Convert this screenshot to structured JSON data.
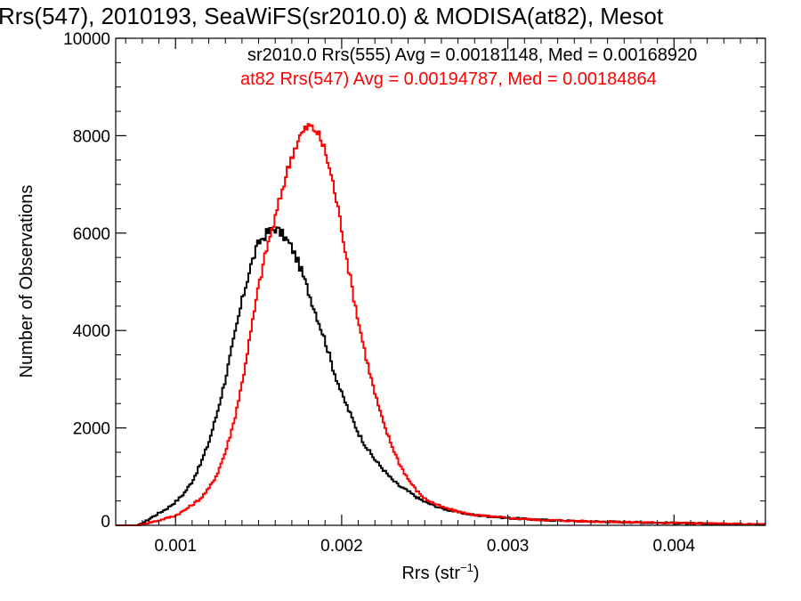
{
  "chart_data": {
    "type": "line",
    "step": true,
    "title": "Rrs(547), 2010193, SeaWiFS(sr2010.0) & MODISA(at82), Mesot",
    "xlabel_main": "Rrs (str",
    "xlabel_sup": "−1",
    "xlabel_end": ")",
    "ylabel": "Number of Observations",
    "xlim": [
      0.00064,
      0.00455
    ],
    "ylim": [
      0,
      10000
    ],
    "xticks": [
      0.001,
      0.002,
      0.003,
      0.004
    ],
    "xtick_labels": [
      "0.001",
      "0.002",
      "0.003",
      "0.004"
    ],
    "yticks": [
      0,
      2000,
      4000,
      6000,
      8000,
      10000
    ],
    "ytick_labels": [
      "0",
      "2000",
      "4000",
      "6000",
      "8000",
      "10000"
    ],
    "grid": false,
    "series": [
      {
        "name": "sr2010.0 Rrs(555) Avg = 0.00181148, Med = 0.00168920",
        "color": "#000000",
        "points": [
          [
            0.00064,
            0
          ],
          [
            0.00078,
            0
          ],
          [
            0.00082,
            80
          ],
          [
            0.00085,
            150
          ],
          [
            0.0009,
            250
          ],
          [
            0.00095,
            350
          ],
          [
            0.001,
            480
          ],
          [
            0.00105,
            650
          ],
          [
            0.0011,
            900
          ],
          [
            0.00115,
            1250
          ],
          [
            0.0012,
            1700
          ],
          [
            0.00125,
            2300
          ],
          [
            0.0013,
            3000
          ],
          [
            0.00135,
            3800
          ],
          [
            0.0014,
            4600
          ],
          [
            0.00145,
            5300
          ],
          [
            0.0015,
            5800
          ],
          [
            0.00155,
            6000
          ],
          [
            0.0016,
            6100
          ],
          [
            0.00165,
            5950
          ],
          [
            0.0017,
            5700
          ],
          [
            0.00175,
            5300
          ],
          [
            0.0018,
            4800
          ],
          [
            0.00185,
            4300
          ],
          [
            0.0019,
            3800
          ],
          [
            0.00195,
            3200
          ],
          [
            0.002,
            2700
          ],
          [
            0.00205,
            2300
          ],
          [
            0.0021,
            1900
          ],
          [
            0.00215,
            1600
          ],
          [
            0.0022,
            1350
          ],
          [
            0.00225,
            1150
          ],
          [
            0.0023,
            950
          ],
          [
            0.00235,
            800
          ],
          [
            0.0024,
            700
          ],
          [
            0.00245,
            580
          ],
          [
            0.0025,
            480
          ],
          [
            0.0026,
            350
          ],
          [
            0.0027,
            270
          ],
          [
            0.0028,
            210
          ],
          [
            0.003,
            150
          ],
          [
            0.0032,
            110
          ],
          [
            0.0035,
            80
          ],
          [
            0.0038,
            60
          ],
          [
            0.0041,
            40
          ],
          [
            0.0043,
            30
          ],
          [
            0.00455,
            20
          ]
        ]
      },
      {
        "name": "at82 Rrs(547) Avg = 0.00194787, Med = 0.00184864",
        "color": "#ff0000",
        "points": [
          [
            0.00064,
            0
          ],
          [
            0.00078,
            0
          ],
          [
            0.00082,
            40
          ],
          [
            0.0009,
            100
          ],
          [
            0.001,
            200
          ],
          [
            0.00105,
            300
          ],
          [
            0.0011,
            420
          ],
          [
            0.00115,
            550
          ],
          [
            0.0012,
            750
          ],
          [
            0.00125,
            1050
          ],
          [
            0.0013,
            1500
          ],
          [
            0.00135,
            2100
          ],
          [
            0.0014,
            2900
          ],
          [
            0.00145,
            3900
          ],
          [
            0.0015,
            4900
          ],
          [
            0.00155,
            5700
          ],
          [
            0.0016,
            6300
          ],
          [
            0.00165,
            7000
          ],
          [
            0.0017,
            7600
          ],
          [
            0.00175,
            8000
          ],
          [
            0.0018,
            8200
          ],
          [
            0.00185,
            8100
          ],
          [
            0.0019,
            7700
          ],
          [
            0.00195,
            7000
          ],
          [
            0.002,
            6100
          ],
          [
            0.00205,
            5100
          ],
          [
            0.0021,
            4200
          ],
          [
            0.00215,
            3400
          ],
          [
            0.0022,
            2700
          ],
          [
            0.00225,
            2100
          ],
          [
            0.0023,
            1650
          ],
          [
            0.00235,
            1250
          ],
          [
            0.0024,
            950
          ],
          [
            0.00245,
            720
          ],
          [
            0.0025,
            550
          ],
          [
            0.0026,
            380
          ],
          [
            0.0027,
            280
          ],
          [
            0.0028,
            210
          ],
          [
            0.003,
            150
          ],
          [
            0.0032,
            110
          ],
          [
            0.0035,
            80
          ],
          [
            0.0038,
            60
          ],
          [
            0.0041,
            45
          ],
          [
            0.0043,
            30
          ],
          [
            0.00455,
            20
          ]
        ]
      }
    ]
  }
}
